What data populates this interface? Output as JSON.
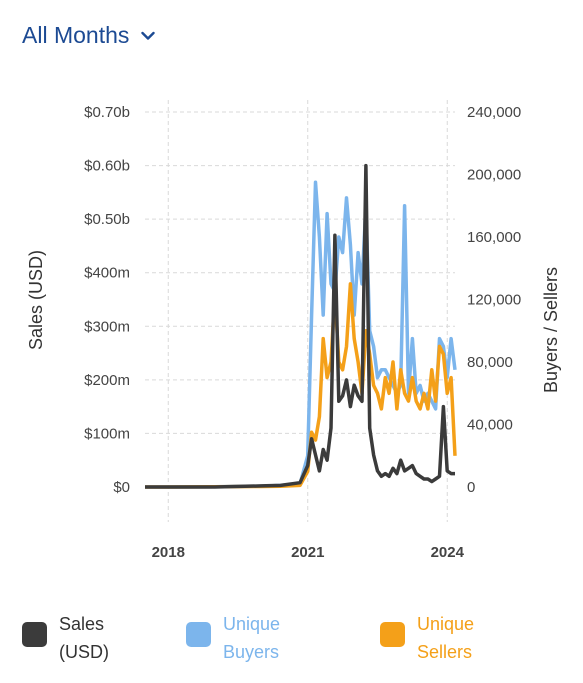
{
  "header": {
    "period_label": "All Months"
  },
  "legend": [
    {
      "label": "Sales (USD)",
      "color": "#3b3b3b",
      "text_color": "#333333"
    },
    {
      "label": "Unique Buyers",
      "color": "#7cb5ec",
      "text_color": "#7cb5ec"
    },
    {
      "label": "Unique Sellers",
      "color": "#f4a019",
      "text_color": "#f4a019"
    }
  ],
  "chart_data": {
    "type": "line",
    "xlabel": "",
    "x_ticks": [
      "2018",
      "2021",
      "2024"
    ],
    "ylabel_left": "Sales (USD)",
    "ylabel_right": "Buyers / Sellers",
    "yticks_left": [
      "$0",
      "$100m",
      "$200m",
      "$300m",
      "$400m",
      "$0.50b",
      "$0.60b",
      "$0.70b"
    ],
    "yticks_right": [
      "0",
      "40,000",
      "80,000",
      "120,000",
      "160,000",
      "200,000",
      "240,000"
    ],
    "ylim_left": [
      0,
      700000000
    ],
    "ylim_right": [
      0,
      240000
    ],
    "grid": true,
    "x": [
      "2017-07",
      "2018-01",
      "2019-01",
      "2020-01",
      "2020-06",
      "2020-11",
      "2021-01",
      "2021-02",
      "2021-03",
      "2021-04",
      "2021-05",
      "2021-06",
      "2021-07",
      "2021-08",
      "2021-09",
      "2021-10",
      "2021-11",
      "2021-12",
      "2022-01",
      "2022-02",
      "2022-03",
      "2022-04",
      "2022-05",
      "2022-06",
      "2022-07",
      "2022-08",
      "2022-09",
      "2022-10",
      "2022-11",
      "2022-12",
      "2023-01",
      "2023-02",
      "2023-03",
      "2023-04",
      "2023-05",
      "2023-06",
      "2023-07",
      "2023-08",
      "2023-09",
      "2023-10",
      "2023-11",
      "2023-12",
      "2024-01",
      "2024-02",
      "2024-03"
    ],
    "series": [
      {
        "name": "Sales (USD)",
        "axis": "left",
        "color": "#3b3b3b",
        "values": [
          0,
          0,
          0,
          2000000,
          3000000,
          8000000,
          40000000,
          90000000,
          60000000,
          30000000,
          70000000,
          50000000,
          110000000,
          470000000,
          160000000,
          170000000,
          200000000,
          150000000,
          190000000,
          170000000,
          160000000,
          600000000,
          110000000,
          60000000,
          30000000,
          20000000,
          25000000,
          20000000,
          35000000,
          25000000,
          50000000,
          30000000,
          35000000,
          40000000,
          25000000,
          20000000,
          15000000,
          15000000,
          10000000,
          15000000,
          20000000,
          150000000,
          30000000,
          25000000,
          25000000
        ]
      },
      {
        "name": "Unique Buyers",
        "axis": "right",
        "color": "#7cb5ec",
        "values": [
          0,
          0,
          200,
          500,
          1000,
          2000,
          20000,
          110000,
          195000,
          160000,
          110000,
          175000,
          130000,
          125000,
          160000,
          150000,
          185000,
          155000,
          110000,
          150000,
          130000,
          180000,
          100000,
          90000,
          70000,
          75000,
          75000,
          70000,
          65000,
          60000,
          65000,
          180000,
          60000,
          95000,
          60000,
          65000,
          55000,
          60000,
          55000,
          50000,
          95000,
          90000,
          70000,
          95000,
          75000
        ]
      },
      {
        "name": "Unique Sellers",
        "axis": "right",
        "color": "#f4a019",
        "values": [
          0,
          0,
          100,
          300,
          500,
          1000,
          10000,
          35000,
          30000,
          45000,
          95000,
          70000,
          80000,
          125000,
          80000,
          75000,
          90000,
          130000,
          95000,
          80000,
          60000,
          100000,
          85000,
          65000,
          60000,
          50000,
          70000,
          60000,
          80000,
          50000,
          75000,
          60000,
          55000,
          70000,
          55000,
          50000,
          60000,
          50000,
          75000,
          55000,
          90000,
          85000,
          60000,
          70000,
          20000
        ]
      }
    ]
  }
}
